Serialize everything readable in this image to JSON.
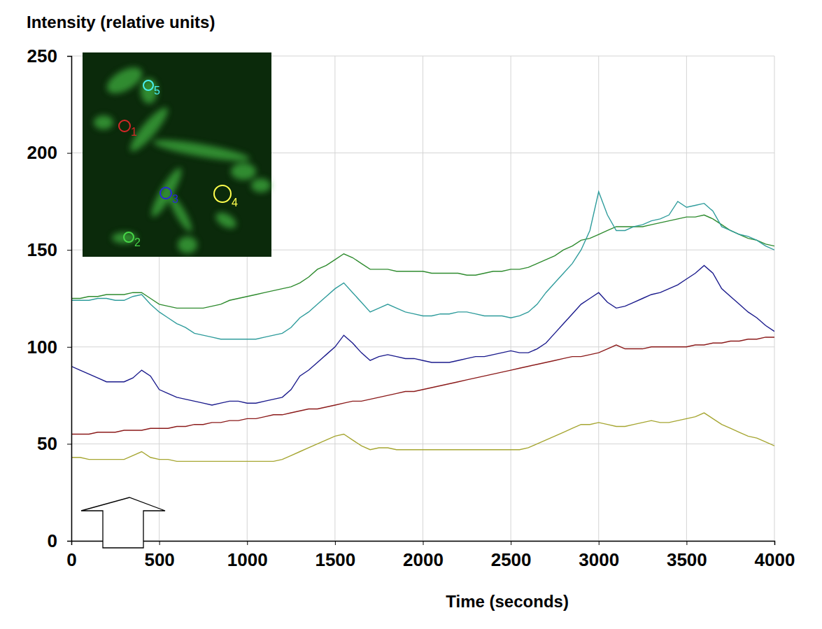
{
  "chart_data": {
    "type": "line",
    "y_label": "Intensity (relative units)",
    "x_label": "Time (seconds)",
    "xlim": [
      0,
      4000
    ],
    "xticks": [
      0,
      500,
      1000,
      1500,
      2000,
      2500,
      3000,
      3500,
      4000
    ],
    "ylim": [
      0,
      250
    ],
    "yticks": [
      0,
      50,
      100,
      150,
      200,
      250
    ],
    "grid": true,
    "x": [
      0,
      50,
      100,
      150,
      200,
      250,
      300,
      350,
      400,
      450,
      500,
      550,
      600,
      650,
      700,
      750,
      800,
      850,
      900,
      950,
      1000,
      1050,
      1100,
      1150,
      1200,
      1250,
      1300,
      1350,
      1400,
      1450,
      1500,
      1550,
      1600,
      1650,
      1700,
      1750,
      1800,
      1850,
      1900,
      1950,
      2000,
      2050,
      2100,
      2150,
      2200,
      2250,
      2300,
      2350,
      2400,
      2450,
      2500,
      2550,
      2600,
      2650,
      2700,
      2750,
      2800,
      2850,
      2900,
      2950,
      3000,
      3050,
      3100,
      3150,
      3200,
      3250,
      3300,
      3350,
      3400,
      3450,
      3500,
      3550,
      3600,
      3650,
      3700,
      3750,
      3800,
      3850,
      3900,
      3950,
      4000
    ],
    "series": [
      {
        "name": "1",
        "color": "#8b1a1a",
        "values": [
          55,
          55,
          55,
          56,
          56,
          56,
          57,
          57,
          57,
          58,
          58,
          58,
          59,
          59,
          60,
          60,
          61,
          61,
          62,
          62,
          63,
          63,
          64,
          65,
          65,
          66,
          67,
          68,
          68,
          69,
          70,
          71,
          72,
          72,
          73,
          74,
          75,
          76,
          77,
          77,
          78,
          79,
          80,
          81,
          82,
          83,
          84,
          85,
          86,
          87,
          88,
          89,
          90,
          91,
          92,
          93,
          94,
          95,
          95,
          96,
          97,
          99,
          101,
          99,
          99,
          99,
          100,
          100,
          100,
          100,
          100,
          101,
          101,
          102,
          102,
          103,
          103,
          104,
          104,
          105,
          105
        ]
      },
      {
        "name": "2",
        "color": "#2e8b2e",
        "values": [
          125,
          125,
          126,
          126,
          127,
          127,
          127,
          128,
          128,
          125,
          122,
          121,
          120,
          120,
          120,
          120,
          121,
          122,
          124,
          125,
          126,
          127,
          128,
          129,
          130,
          131,
          133,
          136,
          140,
          142,
          145,
          148,
          146,
          143,
          140,
          140,
          140,
          139,
          139,
          139,
          139,
          138,
          138,
          138,
          138,
          137,
          137,
          138,
          139,
          139,
          140,
          140,
          141,
          143,
          145,
          147,
          150,
          152,
          155,
          156,
          158,
          160,
          162,
          162,
          162,
          162,
          163,
          164,
          165,
          166,
          167,
          167,
          168,
          166,
          163,
          160,
          158,
          156,
          155,
          153,
          152
        ]
      },
      {
        "name": "3",
        "color": "#1a1a8c",
        "values": [
          90,
          88,
          86,
          84,
          82,
          82,
          82,
          84,
          88,
          85,
          78,
          76,
          74,
          73,
          72,
          71,
          70,
          71,
          72,
          72,
          71,
          71,
          72,
          73,
          74,
          78,
          85,
          88,
          92,
          96,
          100,
          106,
          102,
          97,
          93,
          95,
          96,
          95,
          94,
          94,
          93,
          92,
          92,
          92,
          93,
          94,
          95,
          95,
          96,
          97,
          98,
          97,
          97,
          99,
          102,
          107,
          112,
          117,
          122,
          125,
          128,
          123,
          120,
          121,
          123,
          125,
          127,
          128,
          130,
          132,
          135,
          138,
          142,
          138,
          130,
          126,
          122,
          118,
          115,
          111,
          108
        ]
      },
      {
        "name": "4",
        "color": "#a6a632",
        "values": [
          43,
          43,
          42,
          42,
          42,
          42,
          42,
          44,
          46,
          43,
          42,
          42,
          41,
          41,
          41,
          41,
          41,
          41,
          41,
          41,
          41,
          41,
          41,
          41,
          42,
          44,
          46,
          48,
          50,
          52,
          54,
          55,
          52,
          49,
          47,
          48,
          48,
          47,
          47,
          47,
          47,
          47,
          47,
          47,
          47,
          47,
          47,
          47,
          47,
          47,
          47,
          47,
          48,
          50,
          52,
          54,
          56,
          58,
          60,
          60,
          61,
          60,
          59,
          59,
          60,
          61,
          62,
          61,
          61,
          62,
          63,
          64,
          66,
          63,
          60,
          58,
          56,
          54,
          53,
          51,
          49
        ]
      },
      {
        "name": "5",
        "color": "#2f9c9c",
        "values": [
          124,
          124,
          124,
          125,
          125,
          124,
          124,
          126,
          127,
          122,
          118,
          115,
          112,
          110,
          107,
          106,
          105,
          104,
          104,
          104,
          104,
          104,
          105,
          106,
          107,
          110,
          115,
          118,
          122,
          126,
          130,
          133,
          128,
          123,
          118,
          120,
          122,
          120,
          118,
          117,
          116,
          116,
          117,
          117,
          118,
          118,
          117,
          116,
          116,
          116,
          115,
          116,
          118,
          122,
          128,
          133,
          138,
          143,
          150,
          160,
          180,
          168,
          160,
          160,
          162,
          163,
          165,
          166,
          168,
          175,
          172,
          173,
          174,
          170,
          162,
          160,
          158,
          157,
          155,
          152,
          150
        ]
      }
    ]
  }
}
